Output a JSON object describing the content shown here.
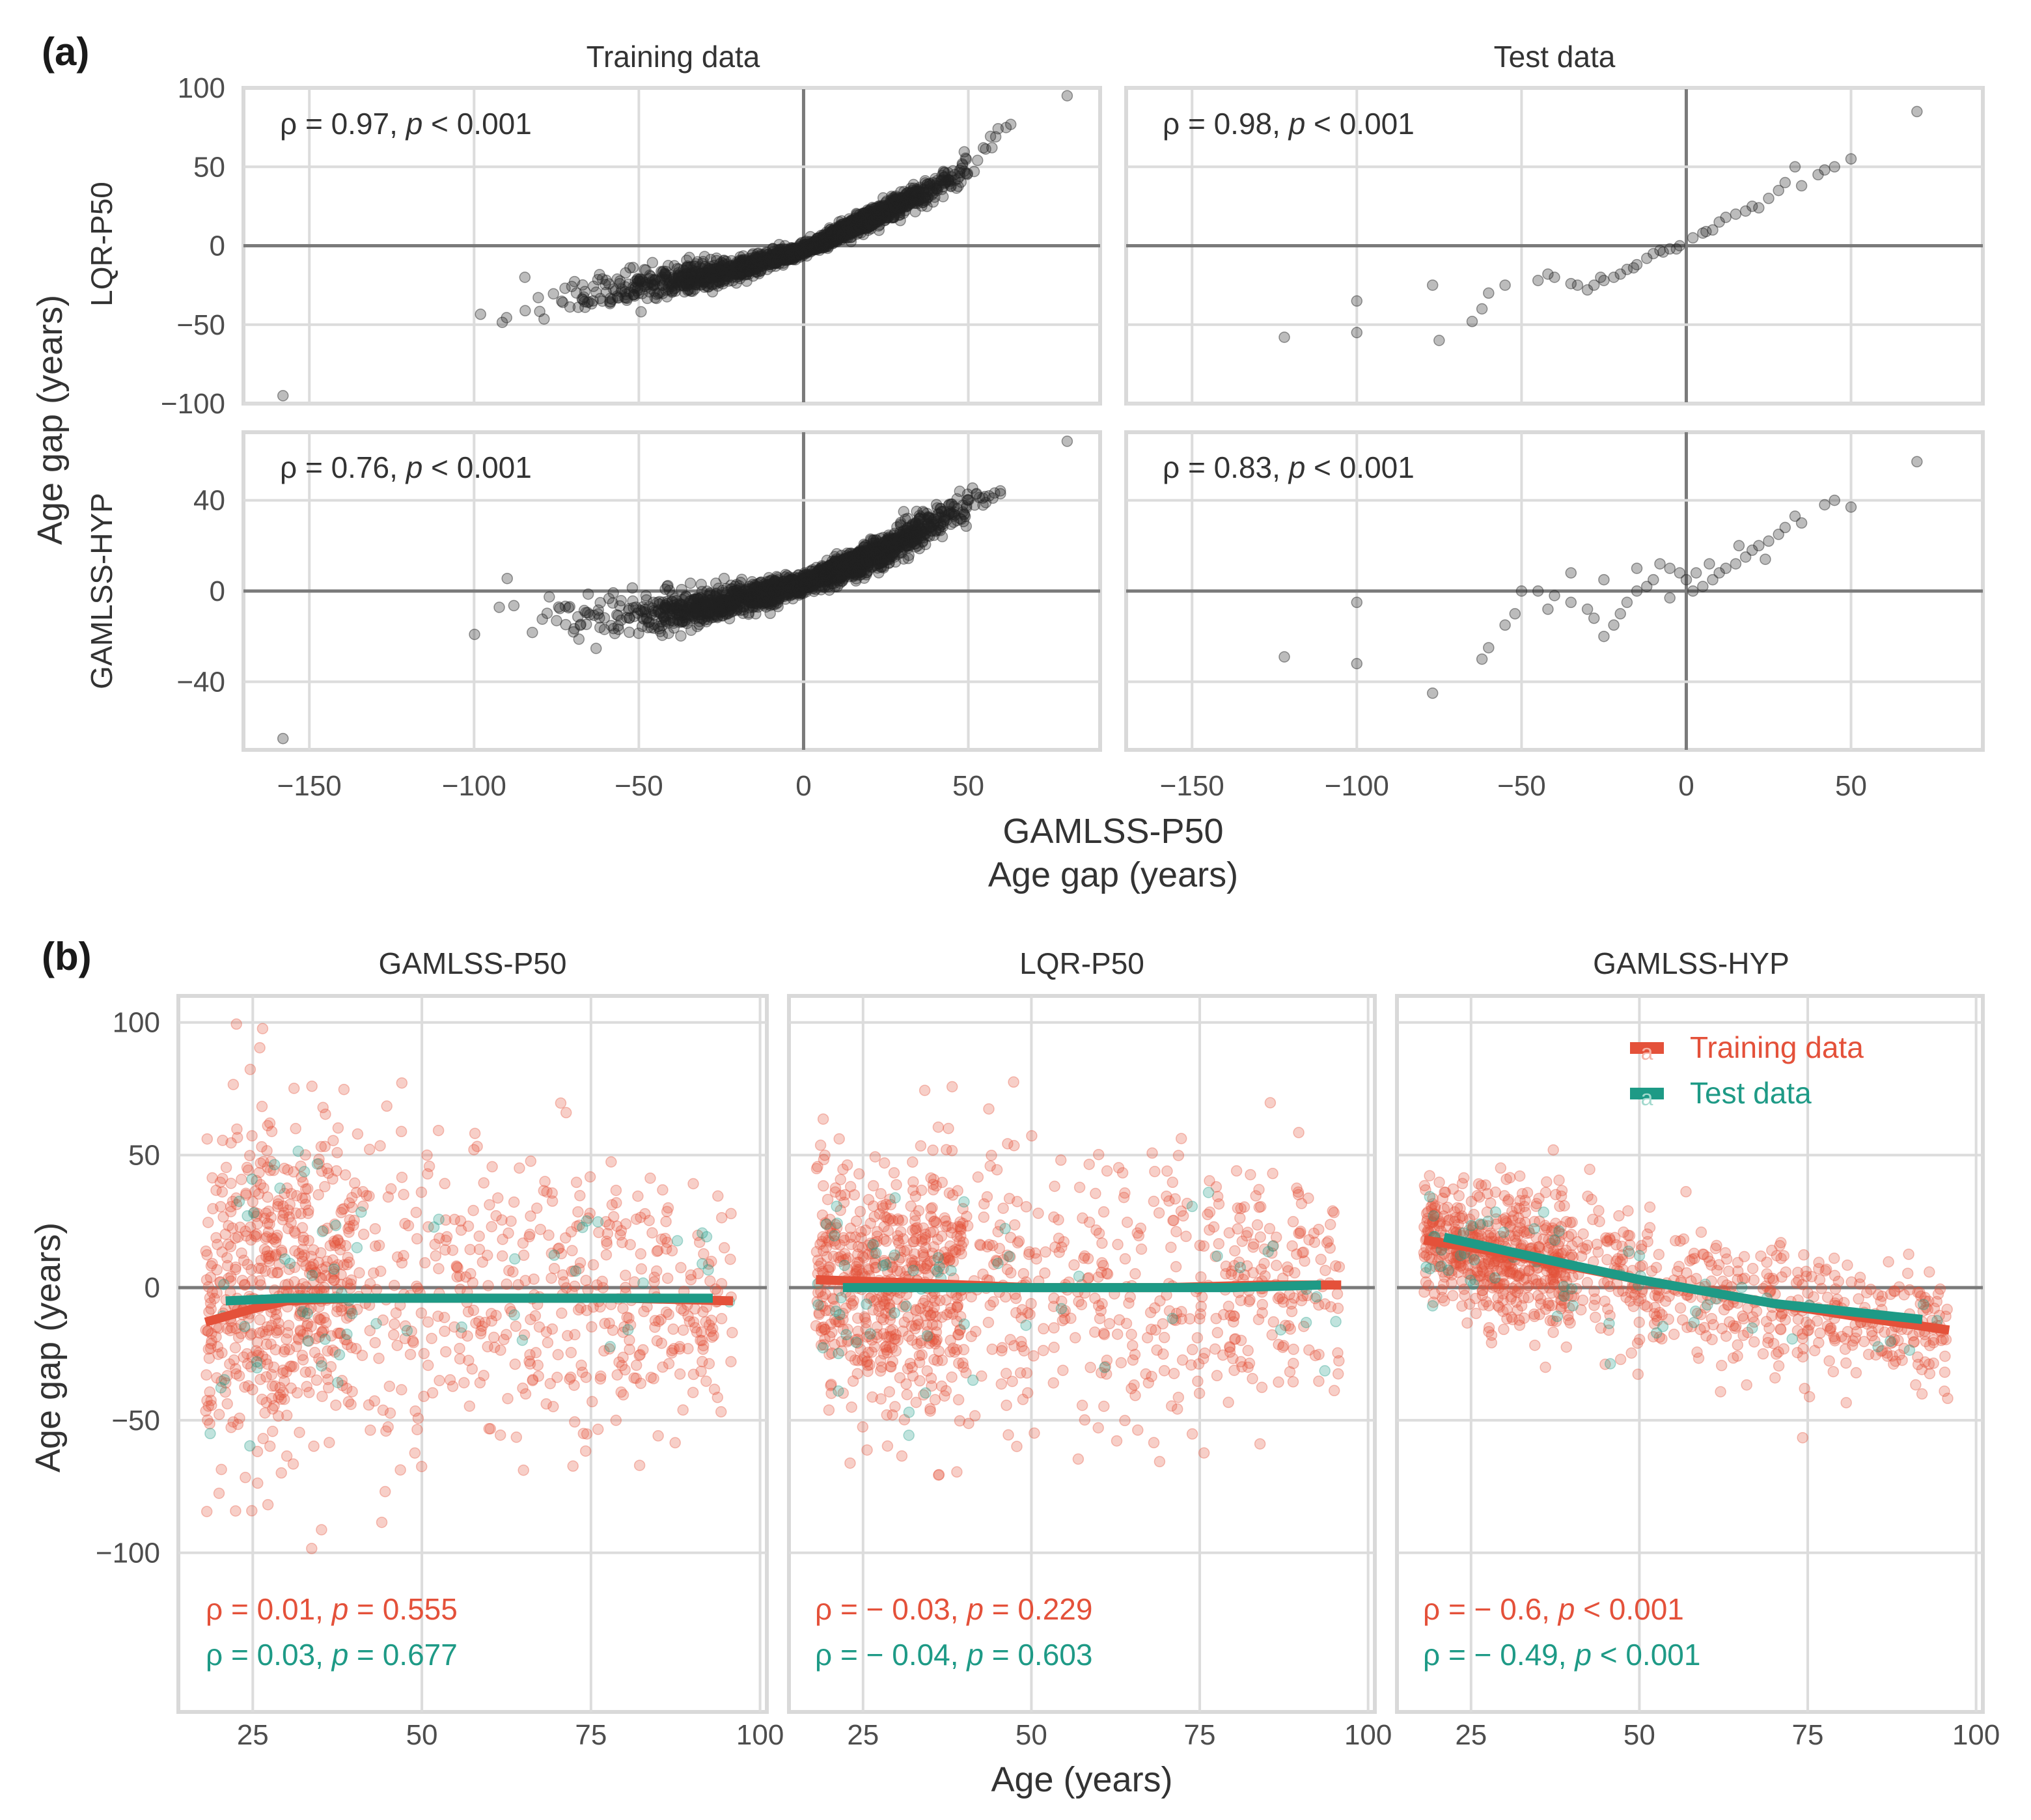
{
  "colors": {
    "training": "#E4513A",
    "test": "#1E9A86",
    "points_a": "#222222",
    "panel_border": "#d9d9d9",
    "grid": "#dcdcdc",
    "zero_line": "#7a7a7a"
  },
  "panel_a": {
    "letter": "(a)",
    "columns": [
      "Training data",
      "Test data"
    ],
    "rows": [
      "LQR-P50",
      "GAMLSS-HYP"
    ],
    "y_title": "Age gap (years)",
    "x_title_line1": "GAMLSS-P50",
    "x_title_line2": "Age gap (years)",
    "annotations": [
      {
        "rho": "ρ = 0.97, ",
        "p_label": "p",
        "p_rest": " < 0.001"
      },
      {
        "rho": "ρ = 0.98, ",
        "p_label": "p",
        "p_rest": " < 0.001"
      },
      {
        "rho": "ρ = 0.76, ",
        "p_label": "p",
        "p_rest": " < 0.001"
      },
      {
        "rho": "ρ = 0.83, ",
        "p_label": "p",
        "p_rest": " < 0.001"
      }
    ]
  },
  "panel_b": {
    "letter": "(b)",
    "facets": [
      "GAMLSS-P50",
      "LQR-P50",
      "GAMLSS-HYP"
    ],
    "y_title": "Age gap (years)",
    "x_title": "Age (years)",
    "legend": [
      "Training data",
      "Test data"
    ],
    "legend_glyph": "a",
    "annotations": [
      {
        "train": {
          "rho": "ρ = 0.01, ",
          "p_label": "p",
          "p_rest": " = 0.555"
        },
        "test": {
          "rho": "ρ = 0.03, ",
          "p_label": "p",
          "p_rest": " = 0.677"
        }
      },
      {
        "train": {
          "rho": "ρ = − 0.03, ",
          "p_label": "p",
          "p_rest": " = 0.229"
        },
        "test": {
          "rho": "ρ = − 0.04, ",
          "p_label": "p",
          "p_rest": " = 0.603"
        }
      },
      {
        "train": {
          "rho": "ρ = − 0.6, ",
          "p_label": "p",
          "p_rest": " < 0.001"
        },
        "test": {
          "rho": "ρ = − 0.49, ",
          "p_label": "p",
          "p_rest": " < 0.001"
        }
      }
    ]
  },
  "chart_data": [
    {
      "type": "scatter",
      "panel": "a",
      "facet_cols": [
        "Training data",
        "Test data"
      ],
      "facet_rows": [
        "LQR-P50",
        "GAMLSS-HYP"
      ],
      "x_ticks": [
        -150,
        -100,
        -50,
        0,
        50
      ],
      "xlim": [
        -170,
        90
      ],
      "rows_scales": [
        {
          "ylim": [
            -100,
            100
          ],
          "y_ticks": [
            -100,
            -50,
            0,
            50,
            100
          ]
        },
        {
          "ylim": [
            -70,
            70
          ],
          "y_ticks": [
            -40,
            0,
            40
          ]
        }
      ],
      "point_alpha": 0.3,
      "series": [
        {
          "col": 0,
          "row": 0,
          "n": 2200,
          "seed": 11,
          "anchors": [
            [
              -158,
              -95
            ],
            [
              -125,
              -40
            ],
            [
              -100,
              -40
            ],
            [
              -75,
              -33
            ],
            [
              -50,
              -26
            ],
            [
              -25,
              -17
            ],
            [
              0,
              -3
            ],
            [
              25,
              22
            ],
            [
              50,
              48
            ],
            [
              64,
              78
            ],
            [
              80,
              95
            ]
          ],
          "spread": [
            [
              -150,
              0.18
            ],
            [
              -100,
              0.24
            ],
            [
              -50,
              0.32
            ],
            [
              0,
              0.3
            ],
            [
              50,
              0.22
            ],
            [
              80,
              0.12
            ]
          ],
          "xdist": {
            "min": -158,
            "max": 80,
            "mode": 6,
            "sd_left": 30,
            "sd_right": 18
          }
        },
        {
          "col": 1,
          "row": 0,
          "points": [
            [
              70,
              85
            ],
            [
              50,
              55
            ],
            [
              45,
              50
            ],
            [
              40,
              45
            ],
            [
              33,
              50
            ],
            [
              30,
              40
            ],
            [
              25,
              30
            ],
            [
              20,
              25
            ],
            [
              15,
              20
            ],
            [
              12,
              18
            ],
            [
              10,
              15
            ],
            [
              5,
              8
            ],
            [
              2,
              5
            ],
            [
              -2,
              0
            ],
            [
              -5,
              -2
            ],
            [
              -8,
              -3
            ],
            [
              -10,
              -5
            ],
            [
              -12,
              -8
            ],
            [
              -15,
              -12
            ],
            [
              -18,
              -15
            ],
            [
              -20,
              -18
            ],
            [
              -22,
              -20
            ],
            [
              -25,
              -22
            ],
            [
              -28,
              -25
            ],
            [
              -30,
              -28
            ],
            [
              -33,
              -25
            ],
            [
              -35,
              -24
            ],
            [
              -40,
              -20
            ],
            [
              -42,
              -18
            ],
            [
              -45,
              -22
            ],
            [
              -55,
              -25
            ],
            [
              -60,
              -30
            ],
            [
              -62,
              -40
            ],
            [
              -65,
              -48
            ],
            [
              -75,
              -60
            ],
            [
              -77,
              -25
            ],
            [
              -100,
              -35
            ],
            [
              -100,
              -55
            ],
            [
              -122,
              -58
            ],
            [
              -3,
              -2
            ],
            [
              8,
              10
            ],
            [
              18,
              22
            ],
            [
              22,
              24
            ],
            [
              28,
              35
            ],
            [
              35,
              38
            ],
            [
              42,
              48
            ],
            [
              6,
              9
            ],
            [
              -7,
              -4
            ],
            [
              -16,
              -14
            ],
            [
              -26,
              -20
            ]
          ]
        },
        {
          "col": 0,
          "row": 1,
          "n": 2200,
          "seed": 23,
          "anchors": [
            [
              -158,
              -65
            ],
            [
              -125,
              -2
            ],
            [
              -100,
              -7
            ],
            [
              -75,
              -10
            ],
            [
              -50,
              -11
            ],
            [
              -25,
              -6
            ],
            [
              0,
              3
            ],
            [
              25,
              18
            ],
            [
              50,
              38
            ],
            [
              65,
              48
            ],
            [
              80,
              66
            ]
          ],
          "spread": [
            [
              -150,
              0.14
            ],
            [
              -100,
              0.2
            ],
            [
              -50,
              0.25
            ],
            [
              0,
              0.32
            ],
            [
              50,
              0.2
            ],
            [
              80,
              0.1
            ]
          ],
          "xdist": {
            "min": -158,
            "max": 80,
            "mode": 6,
            "sd_left": 30,
            "sd_right": 18
          }
        },
        {
          "col": 1,
          "row": 1,
          "points": [
            [
              70,
              57
            ],
            [
              50,
              37
            ],
            [
              45,
              40
            ],
            [
              42,
              38
            ],
            [
              33,
              33
            ],
            [
              30,
              28
            ],
            [
              28,
              25
            ],
            [
              25,
              22
            ],
            [
              22,
              20
            ],
            [
              20,
              18
            ],
            [
              18,
              15
            ],
            [
              15,
              12
            ],
            [
              12,
              10
            ],
            [
              10,
              8
            ],
            [
              8,
              5
            ],
            [
              5,
              2
            ],
            [
              2,
              0
            ],
            [
              0,
              5
            ],
            [
              -2,
              8
            ],
            [
              -5,
              10
            ],
            [
              -8,
              12
            ],
            [
              -10,
              5
            ],
            [
              -12,
              2
            ],
            [
              -15,
              0
            ],
            [
              -18,
              -5
            ],
            [
              -20,
              -10
            ],
            [
              -22,
              -15
            ],
            [
              -25,
              -20
            ],
            [
              -28,
              -12
            ],
            [
              -30,
              -8
            ],
            [
              -35,
              -5
            ],
            [
              -40,
              -2
            ],
            [
              -45,
              0
            ],
            [
              -50,
              0
            ],
            [
              -52,
              -10
            ],
            [
              -55,
              -15
            ],
            [
              -60,
              -25
            ],
            [
              -62,
              -30
            ],
            [
              -77,
              -45
            ],
            [
              -100,
              -32
            ],
            [
              -100,
              -5
            ],
            [
              -122,
              -29
            ],
            [
              -5,
              -3
            ],
            [
              3,
              8
            ],
            [
              7,
              12
            ],
            [
              16,
              20
            ],
            [
              24,
              14
            ],
            [
              35,
              30
            ],
            [
              -15,
              10
            ],
            [
              -25,
              5
            ],
            [
              -35,
              8
            ],
            [
              -42,
              -8
            ]
          ]
        }
      ]
    },
    {
      "type": "scatter",
      "panel": "b",
      "facets": [
        "GAMLSS-P50",
        "LQR-P50",
        "GAMLSS-HYP"
      ],
      "xlabel": "Age (years)",
      "ylabel": "Age gap (years)",
      "xlim": [
        14,
        101
      ],
      "ylim": [
        -160,
        110
      ],
      "x_ticks": [
        25,
        50,
        75,
        100
      ],
      "y_ticks": [
        -100,
        -50,
        0,
        50,
        100
      ],
      "legend": {
        "entries": [
          "Training data",
          "Test data"
        ],
        "position": "top-right"
      },
      "point_alpha_train": 0.3,
      "point_alpha_test": 0.3,
      "series": [
        {
          "facet": 0,
          "seed": 101,
          "n_train": 1000,
          "n_test": 60,
          "mean": [
            [
              18,
              -10
            ],
            [
              25,
              5
            ],
            [
              30,
              5
            ],
            [
              50,
              -3
            ],
            [
              70,
              -5
            ],
            [
              95,
              -5
            ]
          ],
          "sd": [
            [
              18,
              35
            ],
            [
              30,
              32
            ],
            [
              60,
              28
            ],
            [
              95,
              22
            ]
          ],
          "train_curve": [
            [
              18,
              -13
            ],
            [
              25,
              -8
            ],
            [
              30,
              -5
            ],
            [
              40,
              -4
            ],
            [
              60,
              -4
            ],
            [
              80,
              -4
            ],
            [
              96,
              -5
            ]
          ],
          "test_curve": [
            [
              21,
              -5
            ],
            [
              30,
              -4
            ],
            [
              60,
              -4
            ],
            [
              93,
              -4
            ]
          ]
        },
        {
          "facet": 1,
          "seed": 202,
          "n_train": 1000,
          "n_test": 60,
          "mean": [
            [
              18,
              3
            ],
            [
              30,
              2
            ],
            [
              50,
              0
            ],
            [
              70,
              -2
            ],
            [
              95,
              2
            ]
          ],
          "sd": [
            [
              18,
              22
            ],
            [
              40,
              25
            ],
            [
              70,
              25
            ],
            [
              95,
              18
            ]
          ],
          "train_curve": [
            [
              18,
              3
            ],
            [
              30,
              2
            ],
            [
              50,
              0
            ],
            [
              70,
              0
            ],
            [
              85,
              1
            ],
            [
              96,
              1
            ]
          ],
          "test_curve": [
            [
              22,
              0
            ],
            [
              40,
              0
            ],
            [
              60,
              0
            ],
            [
              80,
              0
            ],
            [
              93,
              1
            ]
          ]
        },
        {
          "facet": 2,
          "seed": 303,
          "n_train": 1000,
          "n_test": 60,
          "mean": [
            [
              18,
              18
            ],
            [
              30,
              12
            ],
            [
              50,
              2
            ],
            [
              70,
              -8
            ],
            [
              95,
              -18
            ]
          ],
          "sd": [
            [
              18,
              12
            ],
            [
              40,
              13
            ],
            [
              70,
              12
            ],
            [
              95,
              10
            ]
          ],
          "train_curve": [
            [
              18,
              18
            ],
            [
              30,
              13
            ],
            [
              50,
              3
            ],
            [
              70,
              -6
            ],
            [
              85,
              -12
            ],
            [
              96,
              -16
            ]
          ],
          "test_curve": [
            [
              21,
              19
            ],
            [
              30,
              14
            ],
            [
              50,
              3
            ],
            [
              70,
              -6
            ],
            [
              92,
              -12
            ]
          ]
        }
      ]
    }
  ]
}
